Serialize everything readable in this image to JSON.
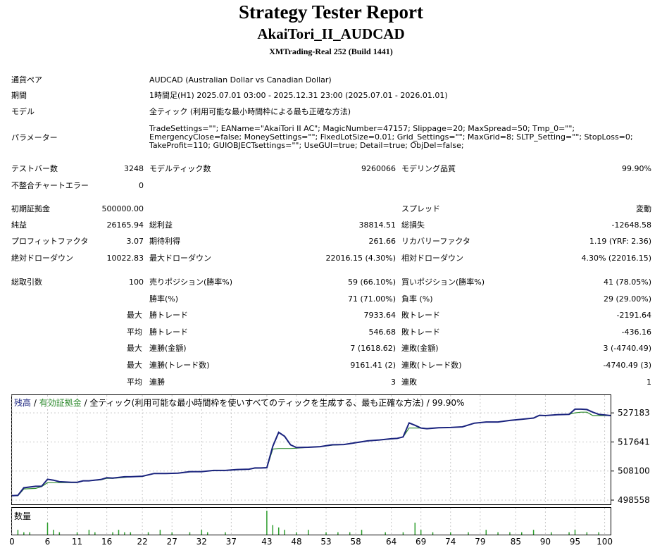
{
  "report": {
    "title": "Strategy Tester Report",
    "subtitle": "AkaiTori_II_AUDCAD",
    "build": "XMTrading-Real 252 (Build 1441)"
  },
  "info": {
    "pair_label": "通貨ペア",
    "pair_value": "AUDCAD (Australian Dollar vs Canadian Dollar)",
    "period_label": "期間",
    "period_value": "1時間足(H1) 2025.07.01 03:00 - 2025.12.31 23:00 (2025.07.01 - 2026.01.01)",
    "model_label": "モデル",
    "model_value": "全ティック (利用可能な最小時間枠による最も正確な方法)",
    "params_label": "パラメーター",
    "params_value": "TradeSettings=\"\"; EAName=\"AkaiTori II AC\"; MagicNumber=47157; Slippage=20; MaxSpread=50; Tmp_0=\"\"; EmergencyClose=false; MoneySettings=\"\"; FixedLotSize=0.01; Grid_Settings=\"\"; MaxGrid=8; SLTP_Setting=\"\"; StopLoss=0; TakeProfit=110; GUIOBJECTsettings=\"\"; UseGUI=true; Detail=true; ObjDel=false;"
  },
  "stats": {
    "bars_label": "テストバー数",
    "bars_value": "3248",
    "ticks_label": "モデルティック数",
    "ticks_value": "9260066",
    "quality_label": "モデリング品質",
    "quality_value": "99.90%",
    "mismatch_label": "不整合チャートエラー",
    "mismatch_value": "0",
    "deposit_label": "初期証拠金",
    "deposit_value": "500000.00",
    "spread_label": "スプレッド",
    "spread_value": "変動",
    "net_label": "純益",
    "net_value": "26165.94",
    "gross_profit_label": "総利益",
    "gross_profit_value": "38814.51",
    "gross_loss_label": "総損失",
    "gross_loss_value": "-12648.58",
    "pf_label": "プロフィットファクタ",
    "pf_value": "3.07",
    "expected_label": "期待利得",
    "expected_value": "261.66",
    "recovery_label": "リカバリーファクタ",
    "recovery_value": "1.19 (YRF: 2.36)",
    "abs_dd_label": "絶対ドローダウン",
    "abs_dd_value": "10022.83",
    "max_dd_label": "最大ドローダウン",
    "max_dd_value": "22016.15 (4.30%)",
    "rel_dd_label": "相対ドローダウン",
    "rel_dd_value": "4.30% (22016.15)",
    "total_label": "総取引数",
    "total_value": "100",
    "sell_label": "売りポジション(勝率%)",
    "sell_value": "59 (66.10%)",
    "buy_label": "買いポジション(勝率%)",
    "buy_value": "41 (78.05%)",
    "winrate_label": "勝率(%)",
    "winrate_value": "71 (71.00%)",
    "lossrate_label": "負率 (%)",
    "lossrate_value": "29 (29.00%)",
    "max_label": "最大",
    "avg_label": "平均",
    "win_trade_label": "勝トレード",
    "loss_trade_label": "敗トレード",
    "max_win_value": "7933.64",
    "max_loss_value": "-2191.64",
    "avg_win_value": "546.68",
    "avg_loss_value": "-436.16",
    "consec_win_amt_label": "連勝(金額)",
    "consec_win_amt_value": "7 (1618.62)",
    "consec_loss_amt_label": "連敗(金額)",
    "consec_loss_amt_value": "3 (-4740.49)",
    "consec_win_cnt_label": "連勝(トレード数)",
    "consec_win_cnt_value": "9161.41 (2)",
    "consec_loss_cnt_label": "連敗(トレード数)",
    "consec_loss_cnt_value": "-4740.49 (3)",
    "avg_consec_win_label": "連勝",
    "avg_consec_win_value": "3",
    "avg_consec_loss_label": "連敗",
    "avg_consec_loss_value": "1"
  },
  "chart_labels": {
    "balance": "残高",
    "sep1": " / ",
    "equity": "有効証拠金",
    "rest": " / 全ティック(利用可能な最小時間枠を使いすべてのティックを生成する、最も正確な方法) / 99.90%",
    "volume": "数量"
  },
  "colors": {
    "balance": "#1a237e",
    "equity": "#2e8b2e",
    "volume": "#2e9e2e",
    "grid": "#c8c8c8"
  },
  "chart_data": {
    "type": "line",
    "title": "残高 / 有効証拠金 / 全ティック(利用可能な最小時間枠を使いすべてのティックを生成する、最も正確な方法) / 99.90%",
    "ylim": [
      498558,
      530000
    ],
    "yticks": [
      498558,
      508100,
      517641,
      527183
    ],
    "xticks": [
      0,
      6,
      11,
      16,
      22,
      27,
      32,
      37,
      43,
      48,
      53,
      58,
      64,
      69,
      74,
      79,
      85,
      90,
      95,
      100
    ],
    "xlim": [
      0,
      101
    ],
    "grid": true,
    "series": [
      {
        "name": "残高",
        "x": [
          0,
          1,
          2,
          4,
          5,
          6,
          7,
          8,
          10,
          11,
          12,
          13,
          15,
          16,
          17,
          19,
          20,
          21,
          22,
          24,
          26,
          28,
          30,
          32,
          33,
          34,
          36,
          38,
          40,
          41,
          42,
          43,
          44,
          45,
          46,
          47,
          48,
          50,
          52,
          54,
          56,
          58,
          60,
          62,
          64,
          65,
          66,
          67,
          68,
          69,
          70,
          72,
          74,
          76,
          78,
          80,
          82,
          84,
          86,
          88,
          89,
          90,
          92,
          94,
          95,
          96,
          97,
          98,
          99,
          101
        ],
        "values": [
          500000,
          500100,
          502600,
          503100,
          503100,
          505400,
          505100,
          504600,
          504400,
          504400,
          504900,
          504900,
          505300,
          505900,
          505800,
          506200,
          506200,
          506300,
          506400,
          507300,
          507300,
          507400,
          507900,
          507900,
          508100,
          508300,
          508300,
          508600,
          508700,
          509100,
          509100,
          509200,
          516200,
          520800,
          519500,
          516700,
          515800,
          515900,
          516100,
          516700,
          516800,
          517400,
          518000,
          518300,
          518700,
          518800,
          519300,
          523900,
          523100,
          522200,
          522000,
          522300,
          522400,
          522600,
          523800,
          524200,
          524200,
          524700,
          525100,
          525500,
          526400,
          526300,
          526600,
          526700,
          528400,
          528400,
          528300,
          527400,
          526700,
          526300
        ]
      },
      {
        "name": "有効証拠金",
        "x": [
          0,
          1,
          2,
          4,
          5,
          6,
          7,
          8,
          10,
          11,
          12,
          13,
          15,
          16,
          17,
          19,
          20,
          21,
          22,
          24,
          26,
          28,
          30,
          32,
          33,
          34,
          36,
          38,
          40,
          41,
          42,
          43,
          44,
          45,
          46,
          47,
          48,
          50,
          52,
          54,
          56,
          58,
          60,
          62,
          64,
          65,
          66,
          67,
          68,
          69,
          70,
          72,
          74,
          76,
          78,
          80,
          82,
          84,
          86,
          88,
          89,
          90,
          92,
          94,
          95,
          96,
          97,
          98,
          99,
          101
        ],
        "values": [
          500000,
          500000,
          502200,
          502400,
          503000,
          504300,
          504300,
          504300,
          504300,
          504300,
          504900,
          504900,
          505200,
          505700,
          505700,
          506000,
          506200,
          506300,
          506300,
          507300,
          507300,
          507400,
          507800,
          507900,
          508100,
          508200,
          508300,
          508500,
          508700,
          509000,
          509100,
          509100,
          515300,
          515500,
          515500,
          515500,
          515600,
          515900,
          516100,
          516600,
          516800,
          517400,
          518000,
          518300,
          518600,
          518800,
          519300,
          522200,
          522200,
          522200,
          522100,
          522300,
          522400,
          522600,
          523800,
          524200,
          524200,
          524700,
          525100,
          525500,
          526300,
          526300,
          526600,
          526700,
          527200,
          527400,
          527400,
          526300,
          526300,
          526300
        ]
      }
    ],
    "volume": {
      "name": "数量",
      "x": [
        1,
        2,
        3,
        6,
        7,
        8,
        11,
        13,
        14,
        17,
        18,
        19,
        20,
        23,
        25,
        27,
        30,
        32,
        33,
        36,
        43,
        44,
        45,
        46,
        48,
        50,
        53,
        55,
        57,
        59,
        63,
        66,
        68,
        69,
        71,
        74,
        77,
        80,
        82,
        84,
        86,
        88,
        91,
        94,
        95,
        97,
        99
      ],
      "values": [
        2,
        1,
        1,
        5,
        2,
        1,
        1,
        2,
        1,
        1,
        2,
        1,
        1,
        1,
        2,
        1,
        1,
        2,
        1,
        1,
        10,
        4,
        3,
        2,
        1,
        2,
        1,
        1,
        1,
        2,
        1,
        1,
        5,
        2,
        1,
        1,
        1,
        2,
        1,
        1,
        1,
        2,
        1,
        1,
        2,
        1,
        1
      ]
    }
  }
}
